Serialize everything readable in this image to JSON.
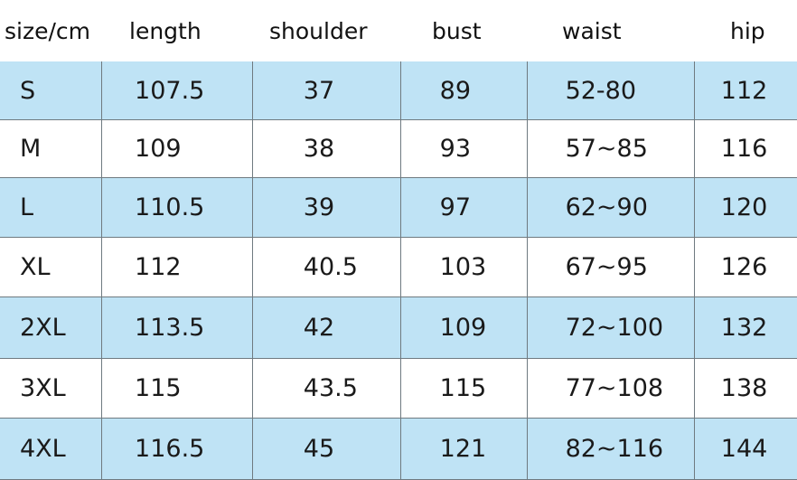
{
  "headers": [
    "size/cm",
    "length",
    "shoulder",
    "bust",
    "waist",
    "hip"
  ],
  "rows": [
    [
      "S",
      "107.5",
      "37",
      "89",
      "52-80",
      "112"
    ],
    [
      "M",
      "109",
      "38",
      "93",
      "57~85",
      "116"
    ],
    [
      "L",
      "110.5",
      "39",
      "97",
      "62~90",
      "120"
    ],
    [
      "XL",
      "112",
      "40.5",
      "103",
      "67~95",
      "126"
    ],
    [
      "2XL",
      "113.5",
      "42",
      "109",
      "72~100",
      "132"
    ],
    [
      "3XL",
      "115",
      "43.5",
      "115",
      "77~108",
      "138"
    ],
    [
      "4XL",
      "116.5",
      "45",
      "121",
      "82~116",
      "144"
    ]
  ],
  "colors": {
    "stripe": "#bfe3f5",
    "grid": "#6f7a80"
  }
}
